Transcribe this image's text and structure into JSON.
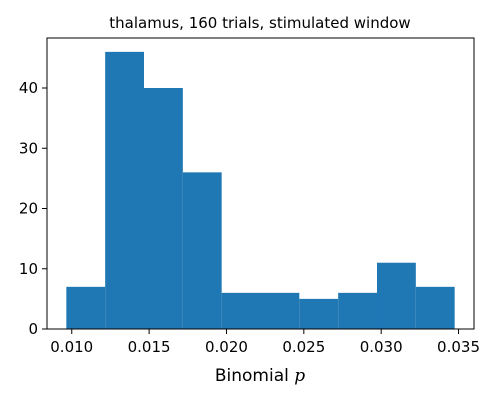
{
  "chart_data": {
    "type": "bar",
    "title": "thalamus, 160 trials, stimulated window",
    "xlabel": "Binomial",
    "xlabel_symbol": "p",
    "ylabel": "",
    "bins": [
      {
        "start": 0.00965,
        "end": 0.01216,
        "count": 7
      },
      {
        "start": 0.01216,
        "end": 0.01467,
        "count": 46
      },
      {
        "start": 0.01467,
        "end": 0.01718,
        "count": 40
      },
      {
        "start": 0.01718,
        "end": 0.01969,
        "count": 26
      },
      {
        "start": 0.01969,
        "end": 0.0222,
        "count": 6
      },
      {
        "start": 0.0222,
        "end": 0.02471,
        "count": 6
      },
      {
        "start": 0.02471,
        "end": 0.02722,
        "count": 5
      },
      {
        "start": 0.02722,
        "end": 0.02973,
        "count": 6
      },
      {
        "start": 0.02973,
        "end": 0.03224,
        "count": 11
      },
      {
        "start": 0.03224,
        "end": 0.03475,
        "count": 7
      }
    ],
    "xlim": [
      0.0084,
      0.036
    ],
    "ylim": [
      0,
      48.3
    ],
    "xticks": [
      0.01,
      0.015,
      0.02,
      0.025,
      0.03,
      0.035
    ],
    "xtick_labels": [
      "0.010",
      "0.015",
      "0.020",
      "0.025",
      "0.030",
      "0.035"
    ],
    "yticks": [
      0,
      10,
      20,
      30,
      40
    ],
    "ytick_labels": [
      "0",
      "10",
      "20",
      "30",
      "40"
    ],
    "bar_color": "#1f77b4",
    "grid": false,
    "legend": "none"
  }
}
